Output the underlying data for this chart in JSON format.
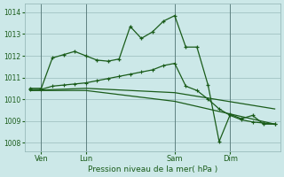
{
  "background_color": "#cce8e8",
  "grid_color": "#99bbbb",
  "line_color": "#1a5c1a",
  "title": "Pression niveau de la mer( hPa )",
  "ylabel_ticks": [
    1008,
    1009,
    1010,
    1011,
    1012,
    1013,
    1014
  ],
  "ylim": [
    1007.6,
    1014.4
  ],
  "xlim": [
    -0.5,
    22.5
  ],
  "xtick_positions": [
    1,
    5,
    13,
    18
  ],
  "xtick_labels": [
    "Ven",
    "Lun",
    "Sam",
    "Dim"
  ],
  "vlines": [
    1,
    5,
    13,
    18
  ],
  "series1_x": [
    0,
    1,
    2,
    3,
    4,
    5,
    6,
    7,
    8,
    9,
    10,
    11,
    12,
    13,
    14,
    15,
    16,
    17,
    18,
    19,
    20,
    21,
    22
  ],
  "series1_y": [
    1010.5,
    1010.5,
    1011.9,
    1012.05,
    1012.2,
    1012.0,
    1011.8,
    1011.75,
    1011.85,
    1013.35,
    1012.8,
    1013.1,
    1013.6,
    1013.85,
    1012.4,
    1012.4,
    1010.65,
    1008.05,
    1009.3,
    1009.1,
    1009.25,
    1008.85,
    1008.85
  ],
  "series2_x": [
    0,
    1,
    2,
    3,
    4,
    5,
    6,
    7,
    8,
    9,
    10,
    11,
    12,
    13,
    14,
    15,
    16,
    17,
    18,
    19,
    20,
    21,
    22
  ],
  "series2_y": [
    1010.45,
    1010.45,
    1010.6,
    1010.65,
    1010.7,
    1010.75,
    1010.85,
    1010.95,
    1011.05,
    1011.15,
    1011.25,
    1011.35,
    1011.55,
    1011.65,
    1010.6,
    1010.4,
    1010.0,
    1009.55,
    1009.25,
    1009.05,
    1008.95,
    1008.9,
    1008.85
  ],
  "series3_x": [
    0,
    5,
    13,
    22
  ],
  "series3_y": [
    1010.4,
    1010.5,
    1010.3,
    1009.55
  ],
  "series4_x": [
    0,
    5,
    13,
    22
  ],
  "series4_y": [
    1010.4,
    1010.4,
    1009.9,
    1008.85
  ]
}
